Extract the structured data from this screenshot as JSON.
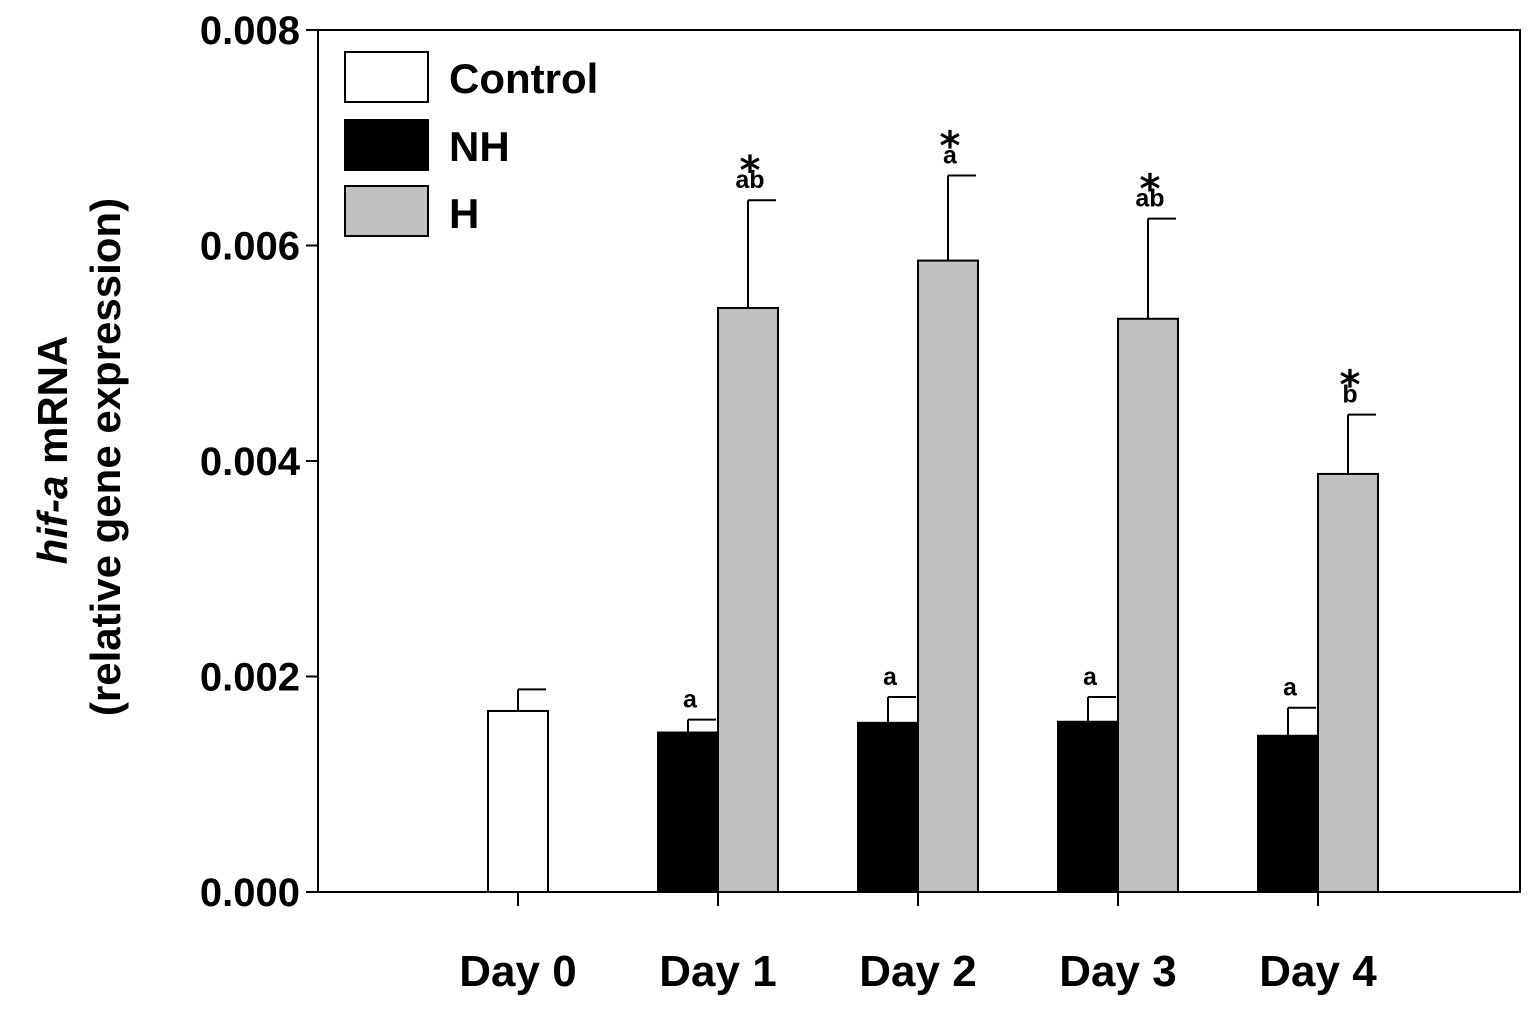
{
  "chart_data": {
    "type": "bar",
    "categories": [
      "Day 0",
      "Day 1",
      "Day 2",
      "Day 3",
      "Day 4"
    ],
    "series": [
      {
        "name": "Control",
        "color": "#ffffff",
        "values": [
          0.00168,
          null,
          null,
          null,
          null
        ],
        "errors": [
          0.0002,
          null,
          null,
          null,
          null
        ],
        "letters": [
          null,
          null,
          null,
          null,
          null
        ],
        "stars": [
          false,
          false,
          false,
          false,
          false
        ]
      },
      {
        "name": "NH",
        "color": "#000000",
        "values": [
          null,
          0.00148,
          0.00157,
          0.00158,
          0.00145
        ],
        "errors": [
          null,
          0.00012,
          0.00024,
          0.00023,
          0.00026
        ],
        "letters": [
          null,
          "a",
          "a",
          "a",
          "a"
        ],
        "stars": [
          false,
          false,
          false,
          false,
          false
        ]
      },
      {
        "name": "H",
        "color": "#c0c0c0",
        "values": [
          null,
          0.00542,
          0.00586,
          0.00532,
          0.00388
        ],
        "errors": [
          null,
          0.001,
          0.00079,
          0.00093,
          0.00055
        ],
        "letters": [
          null,
          "ab",
          "a",
          "ab",
          "b"
        ],
        "stars": [
          false,
          true,
          true,
          true,
          true
        ]
      }
    ],
    "star_symbol": "*",
    "ylim": [
      0,
      0.008
    ],
    "yticks": [
      "0.000",
      "0.002",
      "0.004",
      "0.006",
      "0.008"
    ],
    "ylabel_italic": "hif-a",
    "ylabel_rest": " mRNA",
    "ylabel_line2": "(relative gene  expression)",
    "xlabel": "",
    "title": "",
    "legend_position": "top-left"
  }
}
